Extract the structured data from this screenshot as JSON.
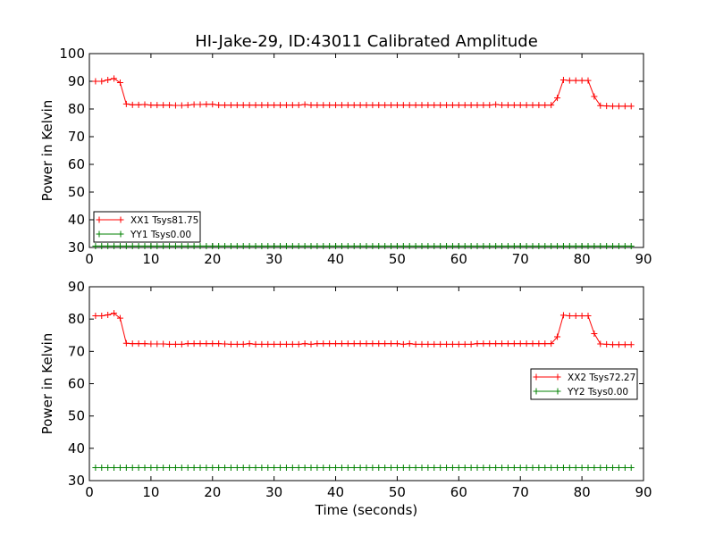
{
  "chart_data": [
    {
      "type": "line",
      "title": "HI-Jake-29, ID:43011 Calibrated Amplitude",
      "xlabel": "",
      "ylabel": "Power in Kelvin",
      "xlim": [
        0,
        90
      ],
      "ylim": [
        30,
        100
      ],
      "xticks": [
        "0",
        "10",
        "20",
        "30",
        "40",
        "50",
        "60",
        "70",
        "80",
        "90"
      ],
      "yticks": [
        "30",
        "40",
        "50",
        "60",
        "70",
        "80",
        "90",
        "100"
      ],
      "grid": false,
      "legend_position": "lower-left",
      "series": [
        {
          "name": "XX1 Tsys81.75",
          "color": "#ff0000",
          "marker": "plus",
          "x": [
            1,
            2,
            3,
            4,
            5,
            6,
            7,
            8,
            9,
            10,
            11,
            12,
            13,
            14,
            15,
            16,
            17,
            18,
            19,
            20,
            21,
            22,
            23,
            24,
            25,
            26,
            27,
            28,
            29,
            30,
            31,
            32,
            33,
            34,
            35,
            36,
            37,
            38,
            39,
            40,
            41,
            42,
            43,
            44,
            45,
            46,
            47,
            48,
            49,
            50,
            51,
            52,
            53,
            54,
            55,
            56,
            57,
            58,
            59,
            60,
            61,
            62,
            63,
            64,
            65,
            66,
            67,
            68,
            69,
            70,
            71,
            72,
            73,
            74,
            75,
            76,
            77,
            78,
            79,
            80,
            81,
            82,
            83,
            84,
            85,
            86,
            87,
            88
          ],
          "y": [
            90,
            90,
            90.5,
            91,
            89.5,
            81.8,
            81.5,
            81.5,
            81.6,
            81.4,
            81.4,
            81.4,
            81.4,
            81.3,
            81.3,
            81.4,
            81.6,
            81.6,
            81.7,
            81.7,
            81.4,
            81.4,
            81.4,
            81.4,
            81.4,
            81.4,
            81.4,
            81.4,
            81.4,
            81.4,
            81.4,
            81.4,
            81.4,
            81.4,
            81.6,
            81.4,
            81.4,
            81.4,
            81.4,
            81.4,
            81.4,
            81.4,
            81.4,
            81.4,
            81.4,
            81.4,
            81.4,
            81.4,
            81.4,
            81.4,
            81.4,
            81.4,
            81.4,
            81.4,
            81.4,
            81.4,
            81.4,
            81.4,
            81.4,
            81.4,
            81.4,
            81.4,
            81.4,
            81.4,
            81.4,
            81.6,
            81.4,
            81.4,
            81.4,
            81.4,
            81.4,
            81.4,
            81.4,
            81.4,
            81.4,
            84,
            90.5,
            90.3,
            90.3,
            90.3,
            90.3,
            84.5,
            81.2,
            81.1,
            81,
            81,
            81,
            81
          ]
        },
        {
          "name": "YY1 Tsys0.00",
          "color": "#008000",
          "marker": "plus",
          "x": [
            1,
            2,
            3,
            4,
            5,
            6,
            7,
            8,
            9,
            10,
            11,
            12,
            13,
            14,
            15,
            16,
            17,
            18,
            19,
            20,
            21,
            22,
            23,
            24,
            25,
            26,
            27,
            28,
            29,
            30,
            31,
            32,
            33,
            34,
            35,
            36,
            37,
            38,
            39,
            40,
            41,
            42,
            43,
            44,
            45,
            46,
            47,
            48,
            49,
            50,
            51,
            52,
            53,
            54,
            55,
            56,
            57,
            58,
            59,
            60,
            61,
            62,
            63,
            64,
            65,
            66,
            67,
            68,
            69,
            70,
            71,
            72,
            73,
            74,
            75,
            76,
            77,
            78,
            79,
            80,
            81,
            82,
            83,
            84,
            85,
            86,
            87,
            88
          ],
          "y": [
            30.5,
            30.5,
            30.5,
            30.5,
            30.5,
            30.5,
            30.5,
            30.5,
            30.5,
            30.5,
            30.5,
            30.5,
            30.5,
            30.5,
            30.5,
            30.5,
            30.5,
            30.5,
            30.5,
            30.5,
            30.5,
            30.5,
            30.5,
            30.5,
            30.5,
            30.5,
            30.5,
            30.5,
            30.5,
            30.5,
            30.5,
            30.5,
            30.5,
            30.5,
            30.5,
            30.5,
            30.5,
            30.5,
            30.5,
            30.5,
            30.5,
            30.5,
            30.5,
            30.5,
            30.5,
            30.5,
            30.5,
            30.5,
            30.5,
            30.5,
            30.5,
            30.5,
            30.5,
            30.5,
            30.5,
            30.5,
            30.5,
            30.5,
            30.5,
            30.5,
            30.5,
            30.5,
            30.5,
            30.5,
            30.5,
            30.5,
            30.5,
            30.5,
            30.5,
            30.5,
            30.5,
            30.5,
            30.5,
            30.5,
            30.5,
            30.5,
            30.5,
            30.5,
            30.5,
            30.5,
            30.5,
            30.5,
            30.5,
            30.5,
            30.5,
            30.5,
            30.5,
            30.5
          ]
        }
      ]
    },
    {
      "type": "line",
      "title": "",
      "xlabel": "Time (seconds)",
      "ylabel": "Power in Kelvin",
      "xlim": [
        0,
        90
      ],
      "ylim": [
        30,
        90
      ],
      "xticks": [
        "0",
        "10",
        "20",
        "30",
        "40",
        "50",
        "60",
        "70",
        "80",
        "90"
      ],
      "yticks": [
        "30",
        "40",
        "50",
        "60",
        "70",
        "80",
        "90"
      ],
      "grid": false,
      "legend_position": "center-right",
      "series": [
        {
          "name": "XX2 Tsys72.27",
          "color": "#ff0000",
          "marker": "plus",
          "x": [
            1,
            2,
            3,
            4,
            5,
            6,
            7,
            8,
            9,
            10,
            11,
            12,
            13,
            14,
            15,
            16,
            17,
            18,
            19,
            20,
            21,
            22,
            23,
            24,
            25,
            26,
            27,
            28,
            29,
            30,
            31,
            32,
            33,
            34,
            35,
            36,
            37,
            38,
            39,
            40,
            41,
            42,
            43,
            44,
            45,
            46,
            47,
            48,
            49,
            50,
            51,
            52,
            53,
            54,
            55,
            56,
            57,
            58,
            59,
            60,
            61,
            62,
            63,
            64,
            65,
            66,
            67,
            68,
            69,
            70,
            71,
            72,
            73,
            74,
            75,
            76,
            77,
            78,
            79,
            80,
            81,
            82,
            83,
            84,
            85,
            86,
            87,
            88
          ],
          "y": [
            81,
            81,
            81.3,
            81.8,
            80.3,
            72.5,
            72.4,
            72.4,
            72.4,
            72.3,
            72.3,
            72.3,
            72.2,
            72.2,
            72.2,
            72.4,
            72.4,
            72.4,
            72.4,
            72.4,
            72.4,
            72.3,
            72.2,
            72.2,
            72.2,
            72.4,
            72.2,
            72.2,
            72.2,
            72.2,
            72.2,
            72.2,
            72.2,
            72.2,
            72.4,
            72.2,
            72.4,
            72.4,
            72.4,
            72.4,
            72.4,
            72.4,
            72.4,
            72.4,
            72.4,
            72.4,
            72.4,
            72.4,
            72.4,
            72.4,
            72.2,
            72.4,
            72.2,
            72.2,
            72.2,
            72.2,
            72.2,
            72.2,
            72.2,
            72.2,
            72.2,
            72.2,
            72.4,
            72.4,
            72.4,
            72.4,
            72.4,
            72.4,
            72.4,
            72.4,
            72.4,
            72.4,
            72.4,
            72.4,
            72.4,
            74.5,
            81.2,
            81,
            81,
            81,
            81,
            75.5,
            72.3,
            72.2,
            72.1,
            72.1,
            72.1,
            72.1
          ]
        },
        {
          "name": "YY2 Tsys0.00",
          "color": "#008000",
          "marker": "plus",
          "x": [
            1,
            2,
            3,
            4,
            5,
            6,
            7,
            8,
            9,
            10,
            11,
            12,
            13,
            14,
            15,
            16,
            17,
            18,
            19,
            20,
            21,
            22,
            23,
            24,
            25,
            26,
            27,
            28,
            29,
            30,
            31,
            32,
            33,
            34,
            35,
            36,
            37,
            38,
            39,
            40,
            41,
            42,
            43,
            44,
            45,
            46,
            47,
            48,
            49,
            50,
            51,
            52,
            53,
            54,
            55,
            56,
            57,
            58,
            59,
            60,
            61,
            62,
            63,
            64,
            65,
            66,
            67,
            68,
            69,
            70,
            71,
            72,
            73,
            74,
            75,
            76,
            77,
            78,
            79,
            80,
            81,
            82,
            83,
            84,
            85,
            86,
            87,
            88
          ],
          "y": [
            34,
            34,
            34,
            34,
            34,
            34,
            34,
            34,
            34,
            34,
            34,
            34,
            34,
            34,
            34,
            34,
            34,
            34,
            34,
            34,
            34,
            34,
            34,
            34,
            34,
            34,
            34,
            34,
            34,
            34,
            34,
            34,
            34,
            34,
            34,
            34,
            34,
            34,
            34,
            34,
            34,
            34,
            34,
            34,
            34,
            34,
            34,
            34,
            34,
            34,
            34,
            34,
            34,
            34,
            34,
            34,
            34,
            34,
            34,
            34,
            34,
            34,
            34,
            34,
            34,
            34,
            34,
            34,
            34,
            34,
            34,
            34,
            34,
            34,
            34,
            34,
            34,
            34,
            34,
            34,
            34,
            34,
            34,
            34,
            34,
            34,
            34,
            34
          ]
        }
      ]
    }
  ]
}
